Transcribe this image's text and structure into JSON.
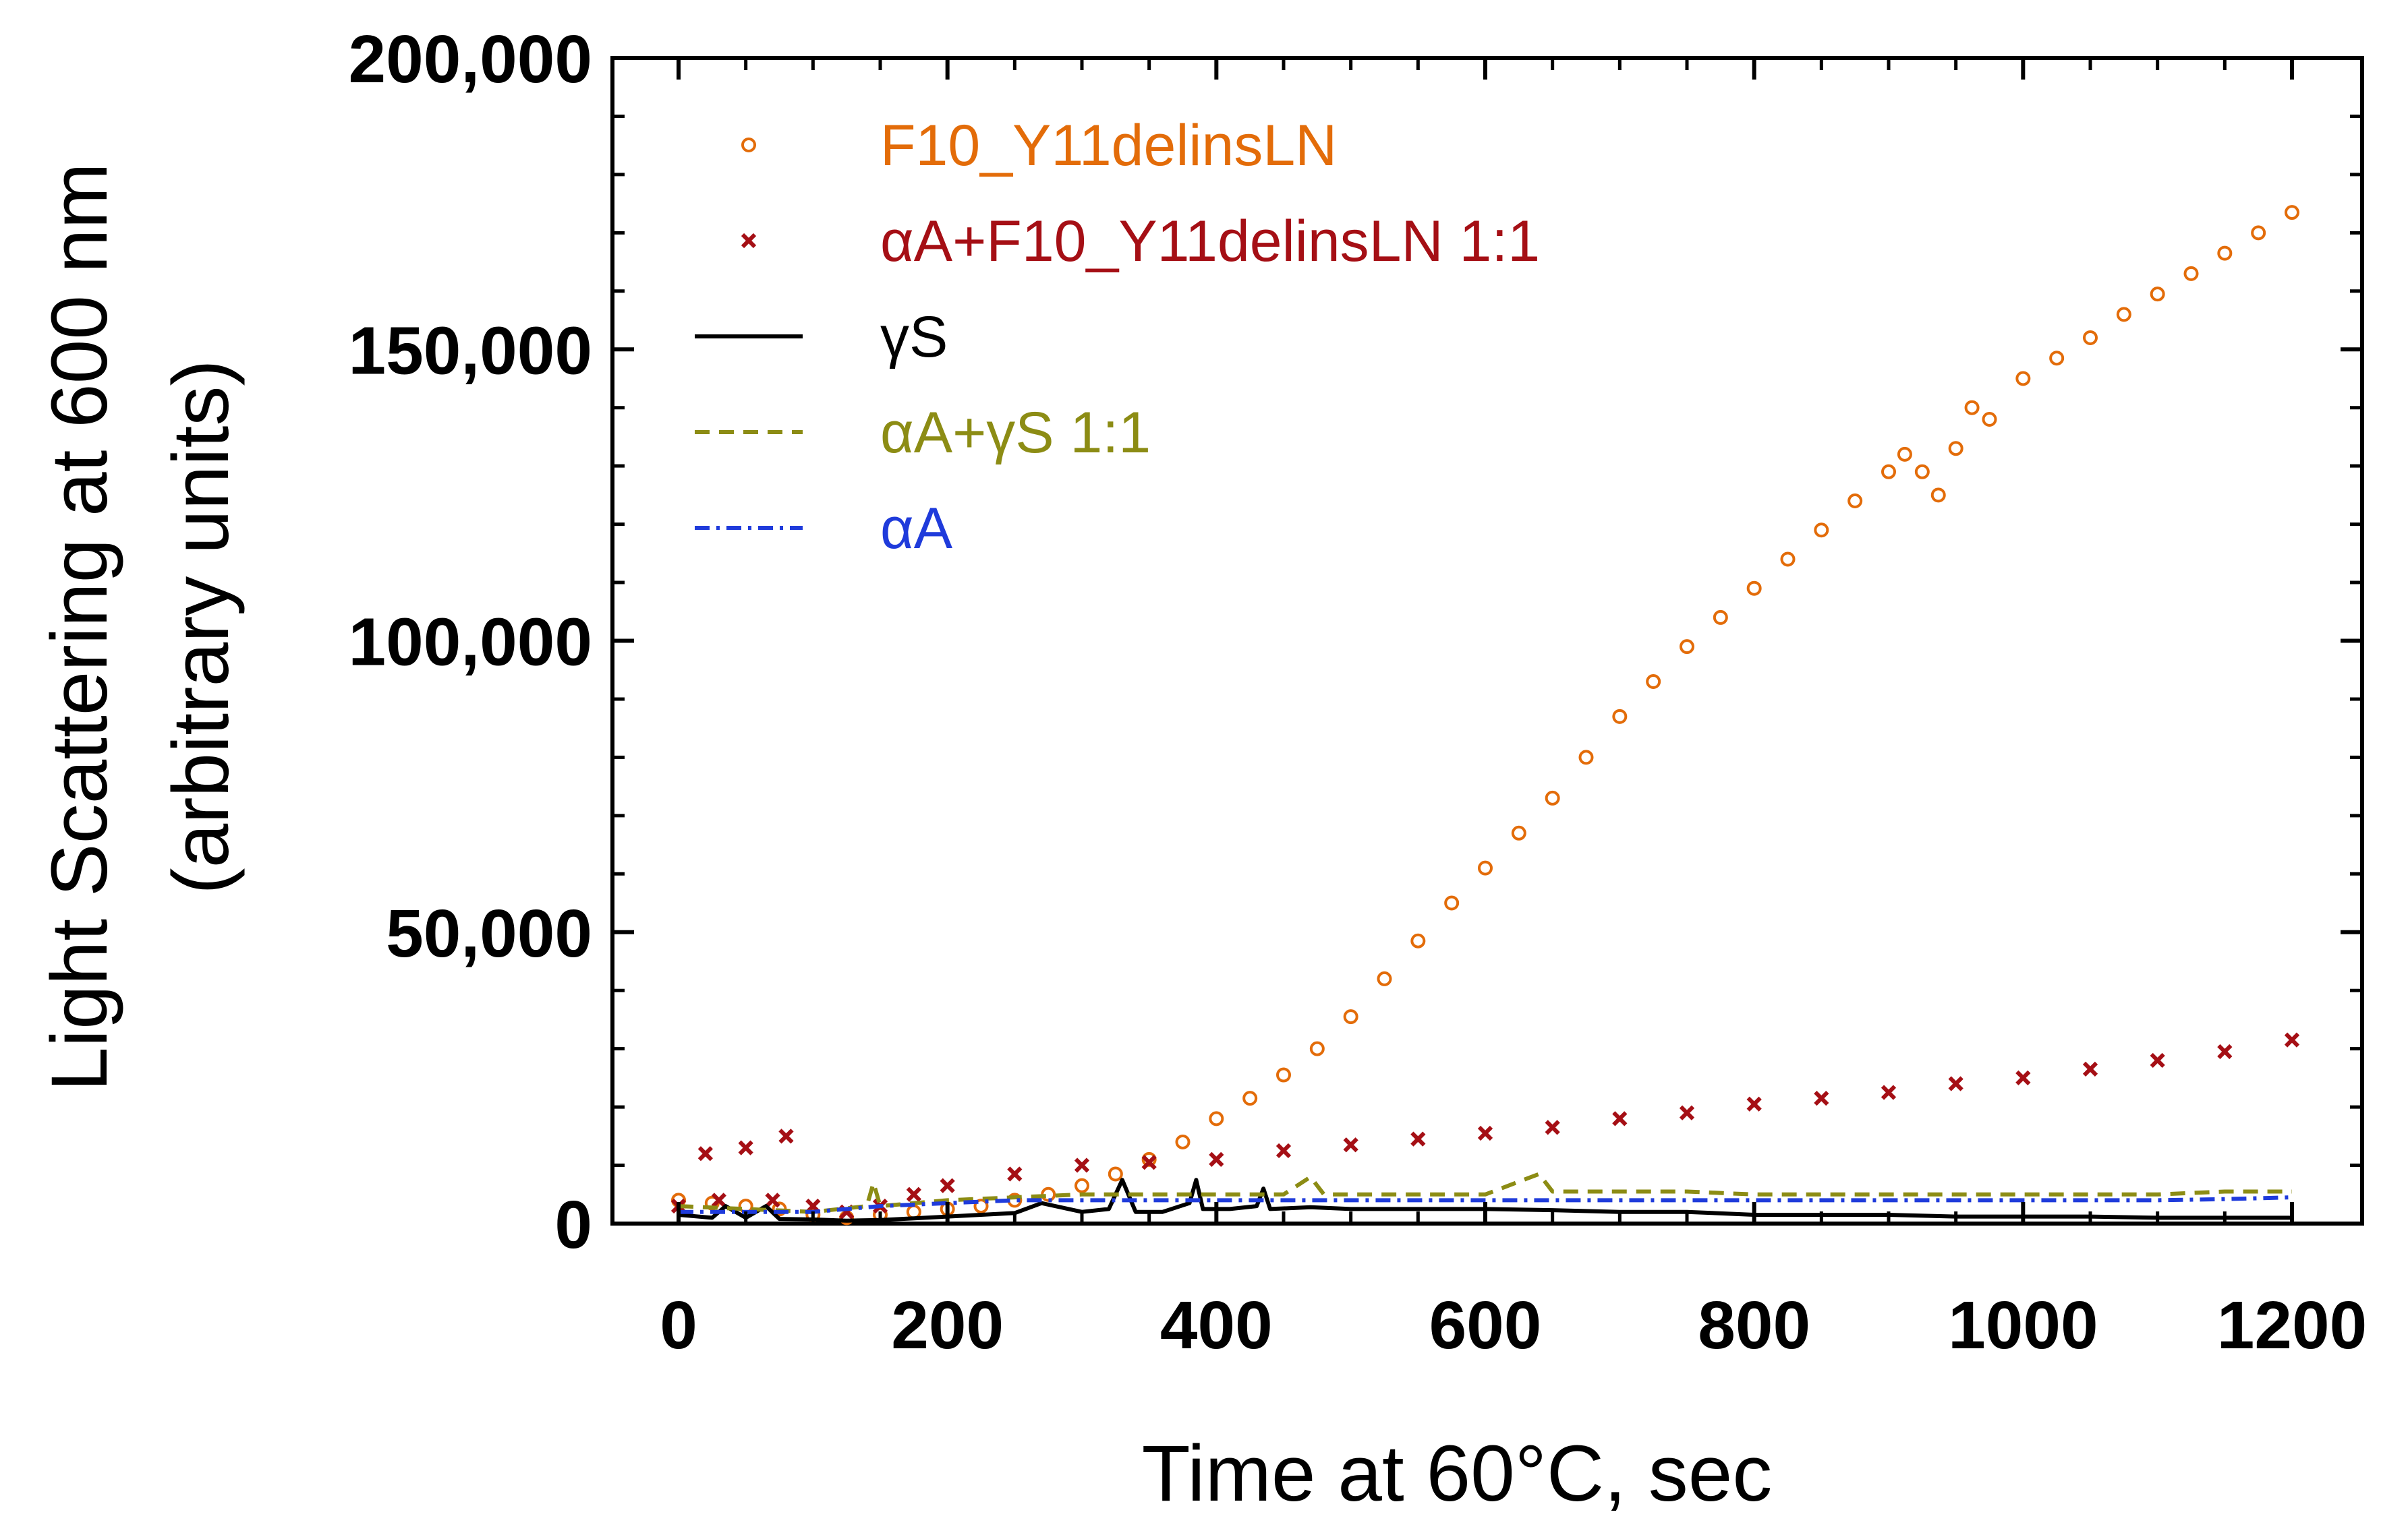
{
  "chart_data": {
    "type": "scatter",
    "xlabel": "Time at 60°C, sec",
    "ylabel_lines": [
      "Light Scattering at 600 nm",
      "(arbitrary units)"
    ],
    "xlim": [
      0,
      1200
    ],
    "ylim": [
      0,
      200000
    ],
    "x_ticks": [
      0,
      200,
      400,
      600,
      800,
      1000,
      1200
    ],
    "x_tick_labels": [
      "0",
      "200",
      "400",
      "600",
      "800",
      "1000",
      "1200"
    ],
    "y_ticks": [
      0,
      50000,
      100000,
      150000,
      200000
    ],
    "y_tick_labels": [
      "0",
      "50,000",
      "100,000",
      "150,000",
      "200,000"
    ],
    "baseline": {
      "y": 0,
      "style": "dotted",
      "color": "#000000"
    },
    "grid": false,
    "legend_position": "top-left",
    "series": [
      {
        "name": "F10_Y11delinsLN",
        "color": "#E36C09",
        "marker": "circle",
        "x": [
          0,
          25,
          50,
          75,
          100,
          125,
          150,
          175,
          200,
          225,
          250,
          275,
          300,
          325,
          350,
          375,
          400,
          425,
          450,
          475,
          500,
          525,
          550,
          575,
          600,
          625,
          650,
          675,
          700,
          725,
          750,
          775,
          800,
          825,
          850,
          875,
          900,
          912,
          925,
          937,
          950,
          962,
          975,
          1000,
          1025,
          1050,
          1075,
          1100,
          1125,
          1150,
          1175,
          1200
        ],
        "y": [
          4000,
          3500,
          3000,
          2500,
          1500,
          1000,
          1500,
          2000,
          2500,
          3000,
          4000,
          5000,
          6500,
          8500,
          11000,
          14000,
          18000,
          21500,
          25500,
          30000,
          35500,
          42000,
          48500,
          55000,
          61000,
          67000,
          73000,
          80000,
          87000,
          93000,
          99000,
          104000,
          109000,
          114000,
          119000,
          124000,
          129000,
          132000,
          129000,
          125000,
          133000,
          140000,
          138000,
          145000,
          148500,
          152000,
          156000,
          159500,
          163000,
          166500,
          170000,
          173500
        ]
      },
      {
        "name": "αA+F10_Y11delinsLN 1:1",
        "color": "#A50F15",
        "marker": "x",
        "x": [
          0,
          20,
          30,
          50,
          70,
          80,
          100,
          125,
          150,
          175,
          200,
          250,
          300,
          350,
          400,
          450,
          500,
          550,
          600,
          650,
          700,
          750,
          800,
          850,
          900,
          950,
          1000,
          1050,
          1100,
          1150,
          1200
        ],
        "y": [
          3000,
          12000,
          4000,
          13000,
          4000,
          15000,
          3000,
          2000,
          3000,
          5000,
          6500,
          8500,
          10000,
          10500,
          11000,
          12500,
          13500,
          14500,
          15500,
          16500,
          18000,
          19000,
          20500,
          21500,
          22500,
          24000,
          25000,
          26500,
          28000,
          29500,
          31500
        ]
      },
      {
        "name": "γS",
        "color": "#000000",
        "marker": "none",
        "line": "solid",
        "x": [
          0,
          25,
          35,
          50,
          65,
          75,
          100,
          125,
          150,
          175,
          200,
          250,
          270,
          300,
          320,
          330,
          340,
          360,
          380,
          385,
          390,
          410,
          430,
          435,
          440,
          470,
          500,
          550,
          600,
          650,
          700,
          750,
          800,
          850,
          900,
          950,
          1000,
          1050,
          1100,
          1150,
          1200
        ],
        "y": [
          1500,
          1000,
          3000,
          1000,
          3000,
          800,
          700,
          500,
          600,
          900,
          1200,
          1800,
          3500,
          2000,
          2500,
          7500,
          2000,
          2000,
          3500,
          7500,
          2500,
          2500,
          3000,
          6000,
          2500,
          2800,
          2500,
          2500,
          2500,
          2300,
          2000,
          2000,
          1500,
          1500,
          1500,
          1200,
          1200,
          1200,
          1000,
          1000,
          1000
        ]
      },
      {
        "name": "αA+γS 1:1",
        "color": "#8C8C14",
        "marker": "none",
        "line": "dashed",
        "x": [
          0,
          50,
          100,
          140,
          145,
          150,
          200,
          250,
          300,
          350,
          400,
          450,
          470,
          480,
          500,
          550,
          600,
          640,
          650,
          700,
          750,
          800,
          850,
          900,
          950,
          1000,
          1050,
          1100,
          1150,
          1200
        ],
        "y": [
          3000,
          2500,
          2000,
          3000,
          7000,
          3000,
          4000,
          4500,
          5000,
          5000,
          5000,
          5000,
          8000,
          5000,
          5000,
          5000,
          5000,
          8500,
          5500,
          5500,
          5500,
          5000,
          5000,
          5000,
          5000,
          5000,
          5000,
          5000,
          5500,
          5500
        ]
      },
      {
        "name": "αA",
        "color": "#1F3BDB",
        "marker": "none",
        "line": "dash-dot",
        "x": [
          0,
          50,
          100,
          150,
          200,
          250,
          300,
          350,
          400,
          450,
          500,
          550,
          600,
          650,
          700,
          750,
          800,
          850,
          900,
          950,
          1000,
          1050,
          1100,
          1150,
          1200
        ],
        "y": [
          2000,
          2000,
          2000,
          3000,
          3500,
          4000,
          4000,
          4000,
          4000,
          4000,
          4000,
          4000,
          4000,
          4000,
          4000,
          4000,
          4000,
          4000,
          4000,
          4000,
          4000,
          4000,
          4000,
          4200,
          4500
        ]
      }
    ]
  }
}
